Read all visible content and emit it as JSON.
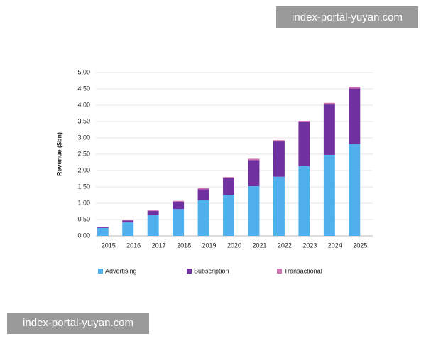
{
  "chart_data": {
    "type": "stacked_bar",
    "y_label": "Revenue ($bn)",
    "categories": [
      "2015",
      "2016",
      "2017",
      "2018",
      "2019",
      "2020",
      "2021",
      "2022",
      "2023",
      "2024",
      "2025"
    ],
    "series": [
      {
        "name": "Advertising",
        "color": "#4fb0ec",
        "values": [
          0.24,
          0.41,
          0.63,
          0.82,
          1.09,
          1.26,
          1.52,
          1.81,
          2.13,
          2.48,
          2.81
        ]
      },
      {
        "name": "Subscription",
        "color": "#7030a0",
        "values": [
          0.02,
          0.06,
          0.13,
          0.22,
          0.34,
          0.51,
          0.8,
          1.08,
          1.35,
          1.54,
          1.7
        ]
      },
      {
        "name": "Transactional",
        "color": "#d070b0",
        "values": [
          0.01,
          0.02,
          0.02,
          0.03,
          0.03,
          0.03,
          0.04,
          0.04,
          0.04,
          0.05,
          0.05
        ]
      }
    ],
    "ylim": [
      0,
      5
    ],
    "yticks": [
      {
        "value": 0,
        "label": "0.00"
      },
      {
        "value": 0.5,
        "label": "0.50"
      },
      {
        "value": 1,
        "label": "1.00"
      },
      {
        "value": 1.5,
        "label": "1.50"
      },
      {
        "value": 2,
        "label": "2.00"
      },
      {
        "value": 2.5,
        "label": "2.50"
      },
      {
        "value": 3,
        "label": "3.00"
      },
      {
        "value": 3.5,
        "label": "3.50"
      },
      {
        "value": 4,
        "label": "4.00"
      },
      {
        "value": 4.5,
        "label": "4.50"
      },
      {
        "value": 5,
        "label": "5.00"
      }
    ],
    "grid": true
  },
  "watermarks": [
    "index-portal-yuyan.com",
    "index-portal-yuyan.com"
  ]
}
